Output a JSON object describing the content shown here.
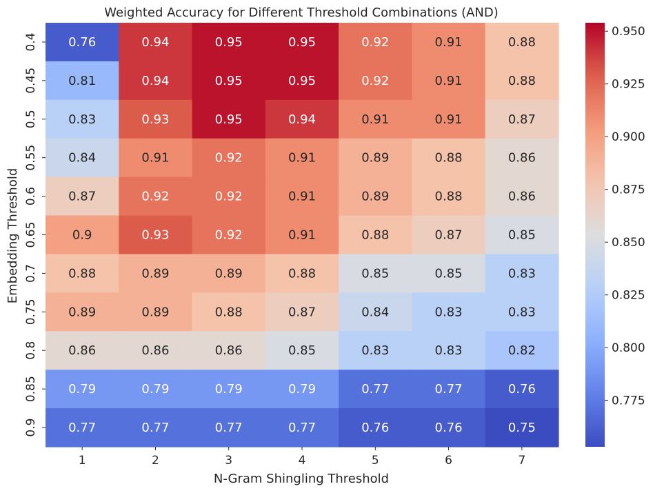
{
  "chart_data": {
    "type": "heatmap",
    "title": "Weighted Accuracy for Different Threshold Combinations (AND)",
    "xlabel": "N-Gram Shingling Threshold",
    "ylabel": "Embedding Threshold",
    "x_categories": [
      "1",
      "2",
      "3",
      "4",
      "5",
      "6",
      "7"
    ],
    "y_categories": [
      "0.4",
      "0.45",
      "0.5",
      "0.55",
      "0.6",
      "0.65",
      "0.7",
      "0.75",
      "0.8",
      "0.85",
      "0.9"
    ],
    "values": [
      [
        0.76,
        0.94,
        0.95,
        0.95,
        0.92,
        0.91,
        0.88
      ],
      [
        0.81,
        0.94,
        0.95,
        0.95,
        0.92,
        0.91,
        0.88
      ],
      [
        0.83,
        0.93,
        0.95,
        0.94,
        0.91,
        0.91,
        0.87
      ],
      [
        0.84,
        0.91,
        0.92,
        0.91,
        0.89,
        0.88,
        0.86
      ],
      [
        0.87,
        0.92,
        0.92,
        0.91,
        0.89,
        0.88,
        0.86
      ],
      [
        0.9,
        0.93,
        0.92,
        0.91,
        0.88,
        0.87,
        0.85
      ],
      [
        0.88,
        0.89,
        0.89,
        0.88,
        0.85,
        0.85,
        0.83
      ],
      [
        0.89,
        0.89,
        0.88,
        0.87,
        0.84,
        0.83,
        0.83
      ],
      [
        0.86,
        0.86,
        0.86,
        0.85,
        0.83,
        0.83,
        0.82
      ],
      [
        0.79,
        0.79,
        0.79,
        0.79,
        0.77,
        0.77,
        0.76
      ],
      [
        0.77,
        0.77,
        0.77,
        0.77,
        0.76,
        0.76,
        0.75
      ]
    ],
    "colormap": "coolwarm",
    "vmin": 0.753,
    "vmax": 0.954,
    "colorbar_ticks": [
      "0.775",
      "0.800",
      "0.825",
      "0.850",
      "0.875",
      "0.900",
      "0.925",
      "0.950"
    ],
    "colors": {
      "cold": "#3b4cc0",
      "neutral": "#dddddd",
      "warm": "#b40426"
    }
  }
}
